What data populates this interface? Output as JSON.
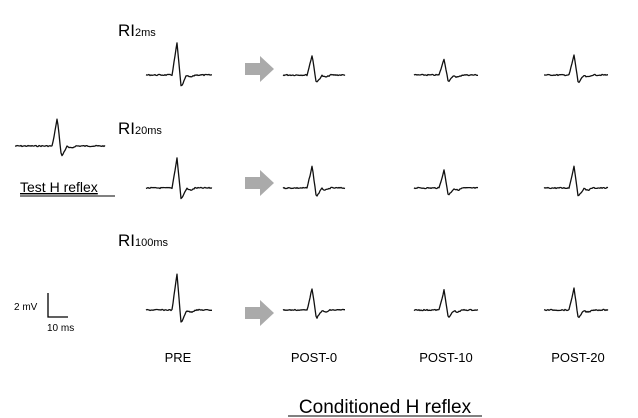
{
  "rows": [
    {
      "label": "RI",
      "subscript": "2ms"
    },
    {
      "label": "RI",
      "subscript": "20ms"
    },
    {
      "label": "RI",
      "subscript": "100ms"
    }
  ],
  "test_label": "Test H reflex",
  "scale": {
    "voltage": "2 mV",
    "time": "10 ms"
  },
  "columns": [
    "PRE",
    "POST-0",
    "POST-10",
    "POST-20"
  ],
  "footer": "Conditioned H reflex"
}
